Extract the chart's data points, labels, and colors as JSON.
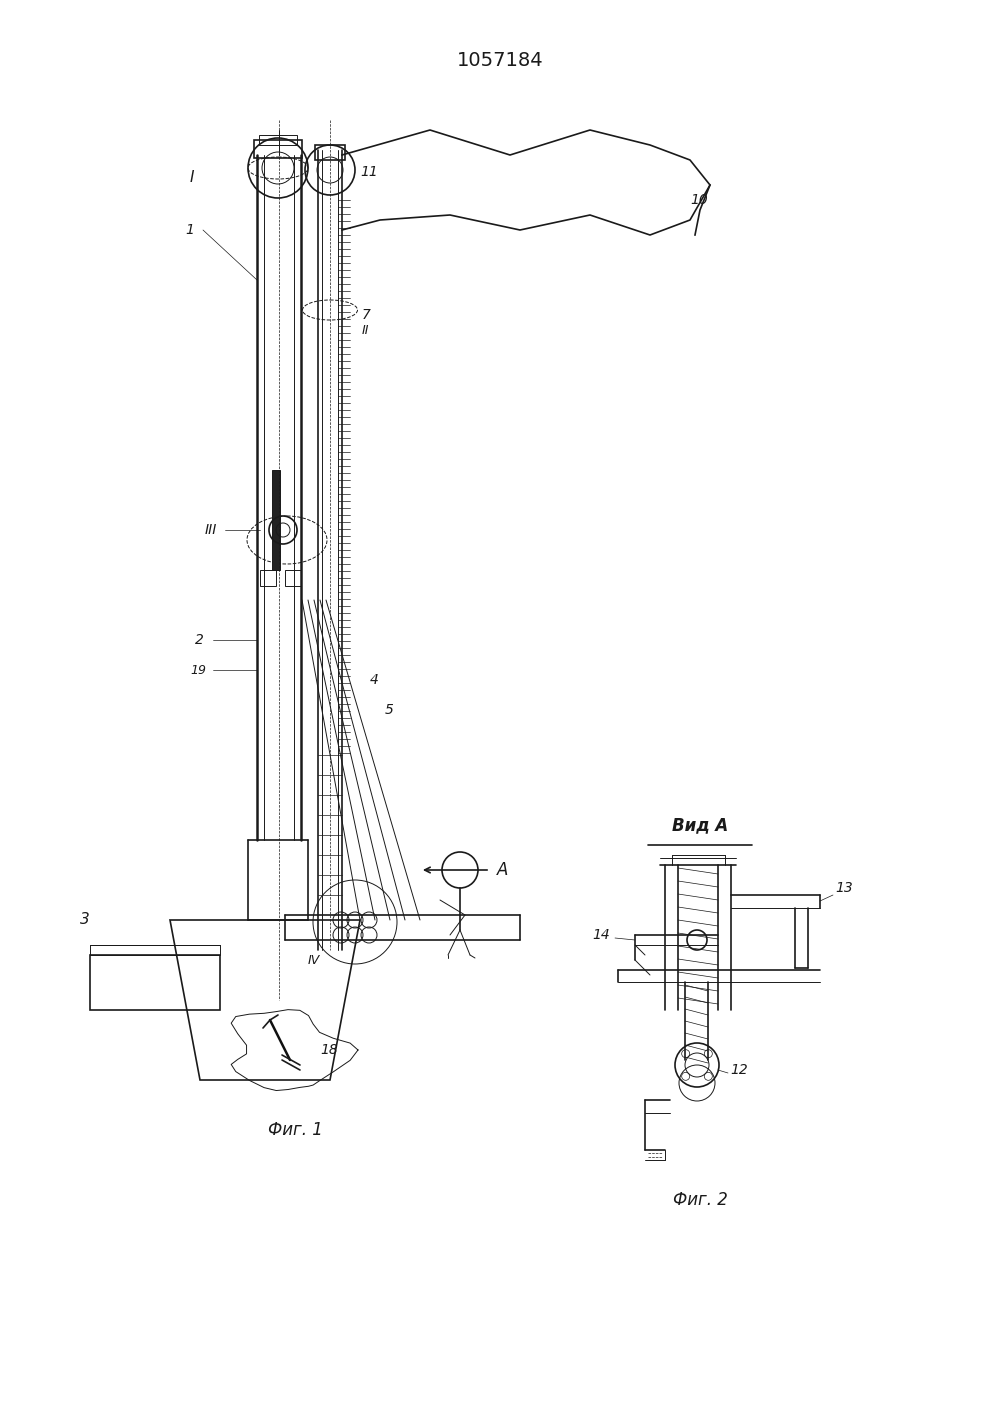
{
  "title": "1057184",
  "bg_color": "#ffffff",
  "line_color": "#1a1a1a",
  "fig1_label": "Фиг. 1",
  "fig2_label": "Фиг. 2",
  "vid_label": "Вид А",
  "arrow_label": "A",
  "lw_thin": 0.7,
  "lw_med": 1.2,
  "lw_thick": 1.8
}
